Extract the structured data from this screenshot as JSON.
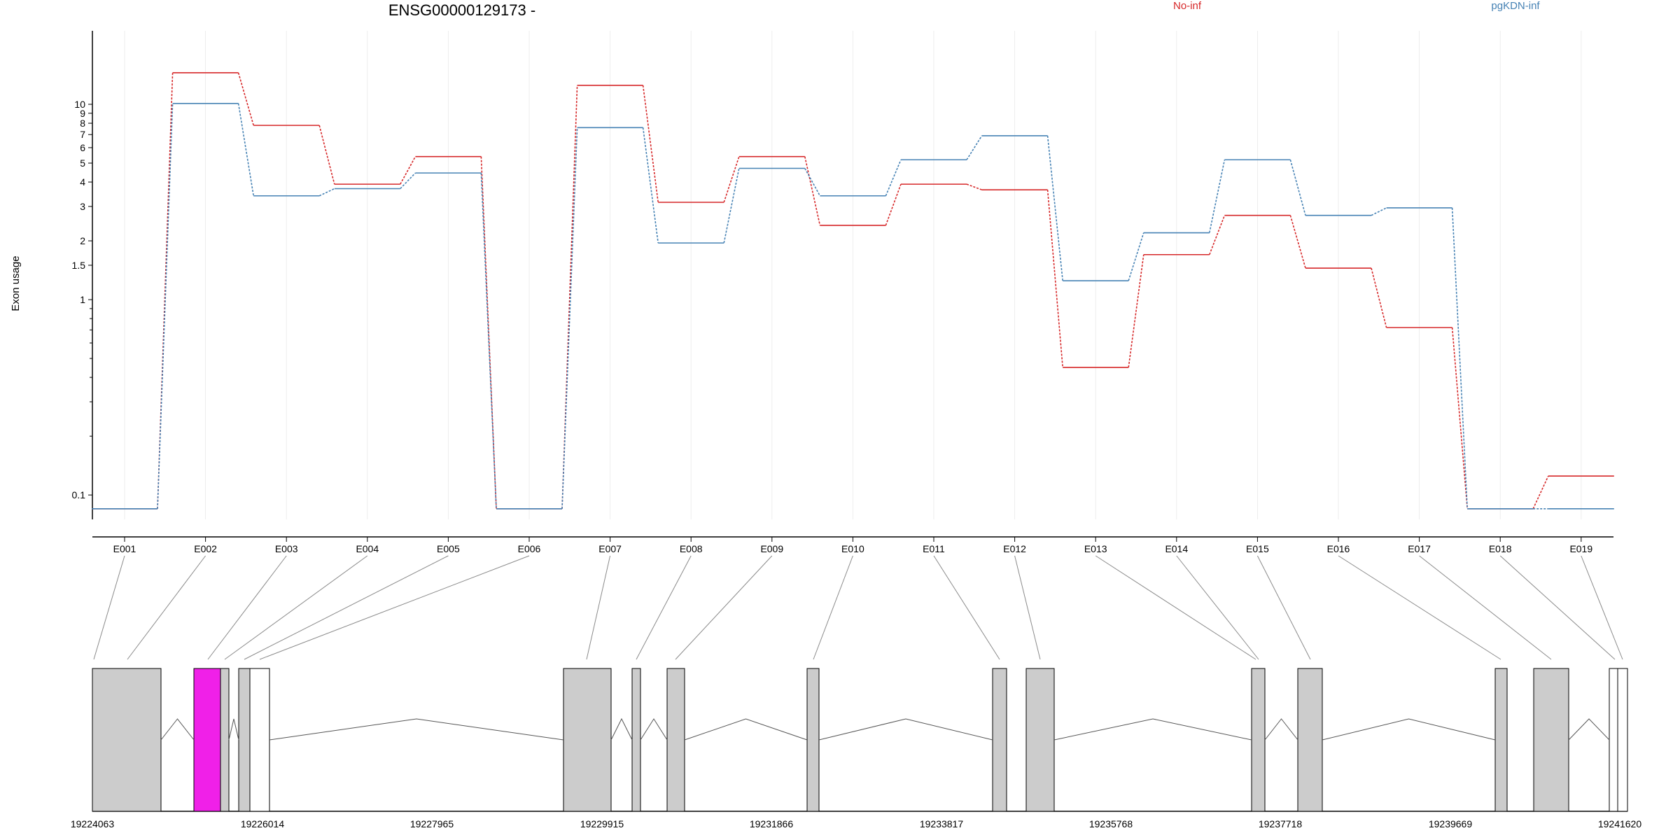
{
  "chart_data": {
    "type": "line",
    "title": "ENSG00000129173 -",
    "ylabel": "Exon usage",
    "yscale": "log",
    "ylim": [
      0.075,
      20
    ],
    "yticks": [
      {
        "v": 0.1,
        "label": "0.1"
      },
      {
        "v": 1,
        "label": "1"
      },
      {
        "v": 1.5,
        "label": "1.5"
      },
      {
        "v": 2,
        "label": "2"
      },
      {
        "v": 3,
        "label": "3"
      },
      {
        "v": 4,
        "label": "4"
      },
      {
        "v": 5,
        "label": "5"
      },
      {
        "v": 6,
        "label": "6"
      },
      {
        "v": 7,
        "label": "7"
      },
      {
        "v": 8,
        "label": "8"
      },
      {
        "v": 9,
        "label": "9"
      },
      {
        "v": 10,
        "label": "10"
      }
    ],
    "categories": [
      "E001",
      "E002",
      "E003",
      "E004",
      "E005",
      "E006",
      "E007",
      "E008",
      "E009",
      "E010",
      "E011",
      "E012",
      "E013",
      "E014",
      "E015",
      "E016",
      "E017",
      "E018",
      "E019"
    ],
    "series": [
      {
        "name": "No-inf",
        "color": "#d62728",
        "values": [
          0.085,
          14.5,
          7.8,
          3.9,
          5.4,
          0.085,
          12.5,
          3.15,
          5.4,
          2.4,
          3.9,
          3.65,
          0.45,
          1.7,
          2.7,
          1.45,
          0.72,
          0.085,
          0.125
        ]
      },
      {
        "name": "pgKDN-inf",
        "color": "#4682b4",
        "values": [
          0.085,
          10.1,
          3.4,
          3.7,
          4.45,
          0.085,
          7.6,
          1.95,
          4.7,
          3.4,
          5.2,
          6.9,
          1.25,
          2.2,
          5.2,
          2.7,
          2.95,
          0.085,
          0.085
        ]
      }
    ],
    "gene_model": {
      "coordinate_ticks": [
        "19224063",
        "19226014",
        "19227965",
        "19229915",
        "19231866",
        "19233817",
        "19235768",
        "19237718",
        "19239669",
        "19241620"
      ],
      "highlighted_exon": "E003",
      "highlight_color": "#f020e8",
      "exon_color": "#cccccc"
    }
  }
}
